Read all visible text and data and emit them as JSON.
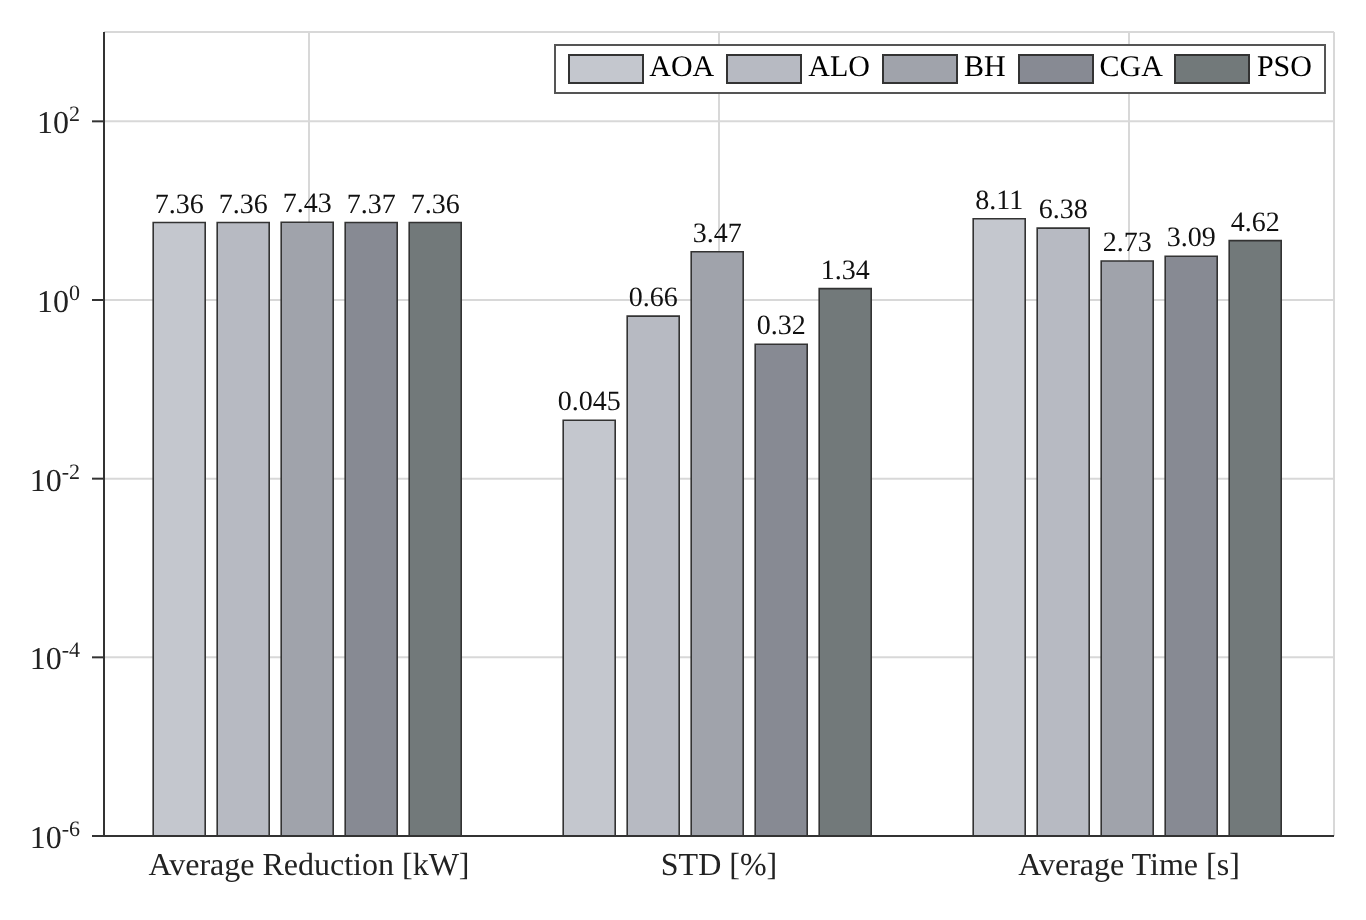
{
  "chart_data": {
    "type": "bar",
    "categories": [
      "Average Reduction [kW]",
      "STD [%]",
      "Average Time [s]"
    ],
    "series": [
      {
        "name": "AOA",
        "color": "#c4c7ce",
        "values": [
          7.36,
          0.045,
          8.11
        ]
      },
      {
        "name": "ALO",
        "color": "#b7bac2",
        "values": [
          7.36,
          0.66,
          6.38
        ]
      },
      {
        "name": "BH",
        "color": "#a0a3ab",
        "values": [
          7.43,
          3.47,
          2.73
        ]
      },
      {
        "name": "CGA",
        "color": "#878a93",
        "values": [
          7.37,
          0.32,
          3.09
        ]
      },
      {
        "name": "PSO",
        "color": "#72797a",
        "values": [
          7.36,
          1.34,
          4.62
        ]
      }
    ],
    "log": true,
    "ylim": [
      1e-06,
      1000
    ],
    "yticks": [
      {
        "value": 1e-06,
        "label": "10$^{-6}$"
      },
      {
        "value": 0.0001,
        "label": "10$^{-4}$"
      },
      {
        "value": 0.01,
        "label": "10$^{-2}$"
      },
      {
        "value": 1,
        "label": "10$^{0}$"
      },
      {
        "value": 100,
        "label": "10$^{2}$"
      }
    ],
    "grid": true,
    "legend": "top right",
    "data_labels": true
  }
}
